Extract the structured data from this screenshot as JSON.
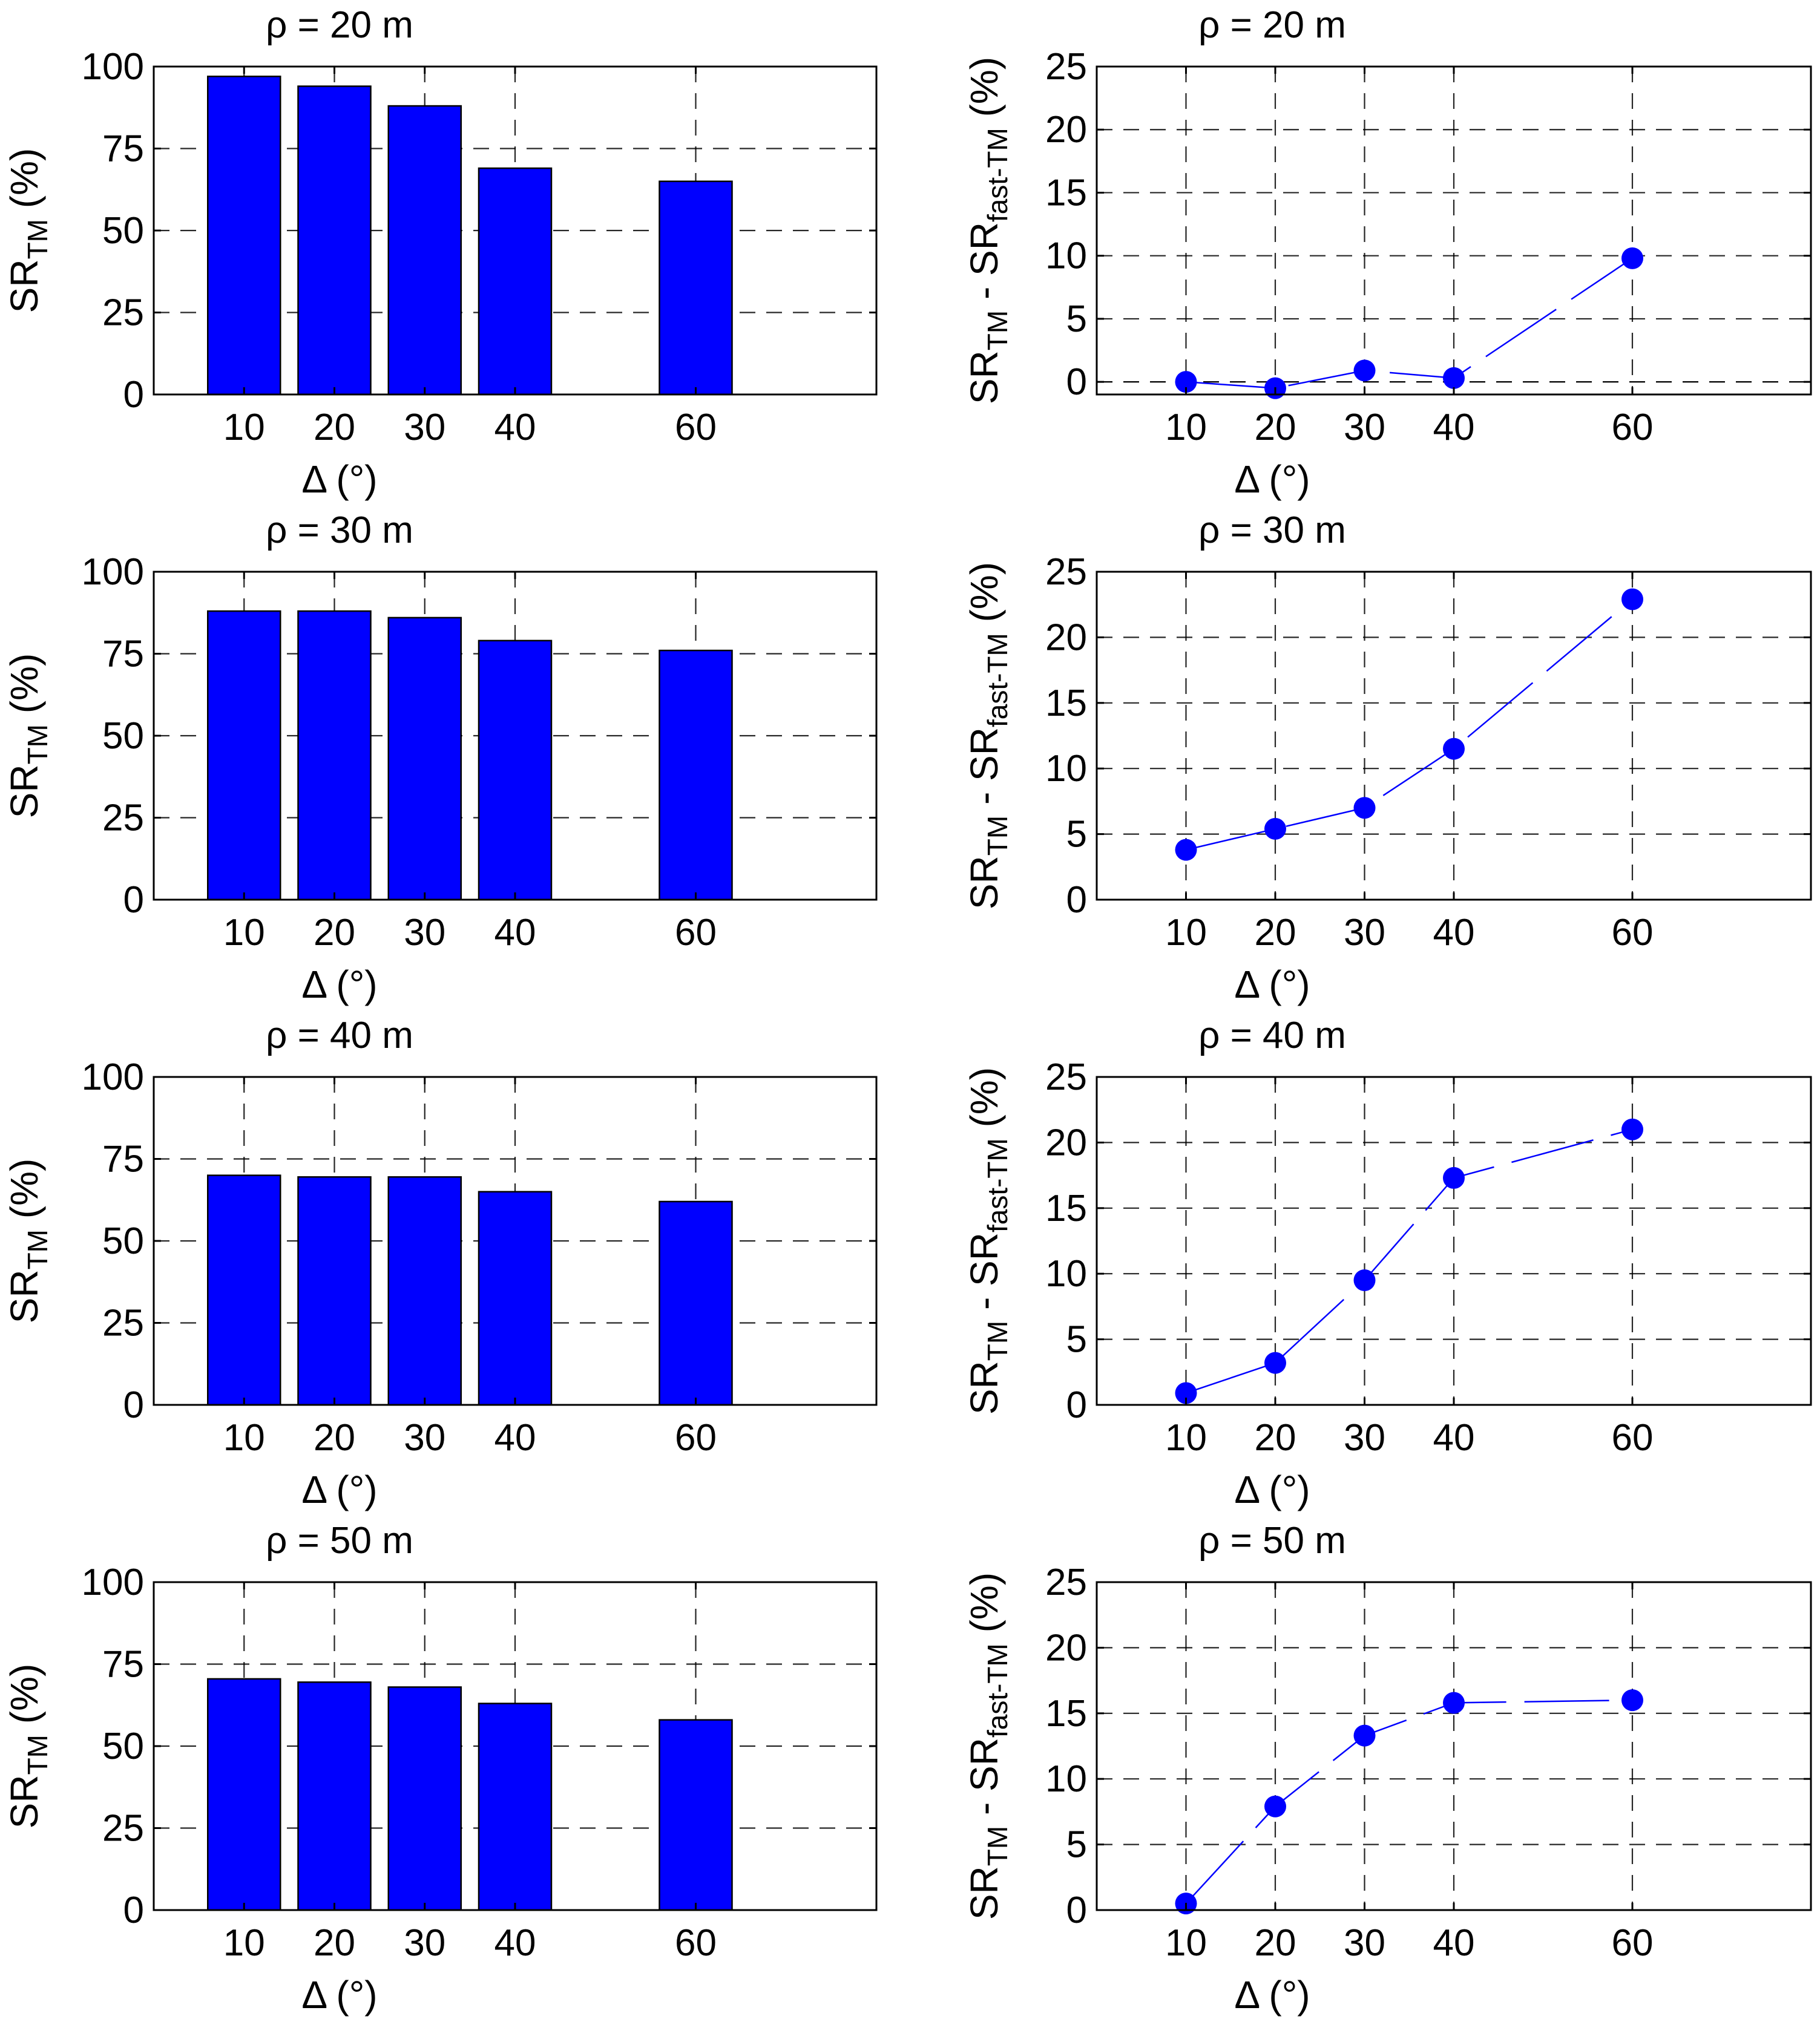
{
  "colors": {
    "bar": "#0000ff",
    "marker": "#0000ff",
    "line": "#0000ff"
  },
  "labels": {
    "x": "Δ (°)",
    "y_left_main": "SR",
    "y_left_sub": "TM",
    "y_left_unit": "(%)",
    "y_right_a": "SR",
    "y_right_sub1": "TM",
    "y_right_mid": " - SR",
    "y_right_sub2": "fast-TM",
    "y_right_unit": "(%)"
  },
  "chart_data": [
    {
      "type": "bar",
      "title": "ρ = 20 m",
      "categories": [
        "10",
        "20",
        "30",
        "40",
        "60"
      ],
      "x": [
        10,
        20,
        30,
        40,
        60
      ],
      "values": [
        97,
        94,
        88,
        69,
        65
      ],
      "xlabel": "Δ (°)",
      "ylabel": "SR_TM (%)",
      "xlim": [
        0,
        80
      ],
      "ylim": [
        0,
        100
      ],
      "yticks": [
        0,
        25,
        50,
        75,
        100
      ],
      "grid": true
    },
    {
      "type": "line",
      "title": "ρ = 20 m",
      "x": [
        10,
        20,
        30,
        40,
        60
      ],
      "values": [
        0,
        -0.5,
        0.9,
        0.3,
        9.8
      ],
      "xlabel": "Δ (°)",
      "ylabel": "SR_TM - SR_fast-TM (%)",
      "xlim": [
        0,
        80
      ],
      "ylim": [
        -1,
        25
      ],
      "yticks": [
        0,
        5,
        10,
        15,
        20,
        25
      ],
      "grid": true
    },
    {
      "type": "bar",
      "title": "ρ = 30 m",
      "categories": [
        "10",
        "20",
        "30",
        "40",
        "60"
      ],
      "x": [
        10,
        20,
        30,
        40,
        60
      ],
      "values": [
        88,
        88,
        86,
        79,
        76
      ],
      "xlabel": "Δ (°)",
      "ylabel": "SR_TM (%)",
      "xlim": [
        0,
        80
      ],
      "ylim": [
        0,
        100
      ],
      "yticks": [
        0,
        25,
        50,
        75,
        100
      ],
      "grid": true
    },
    {
      "type": "line",
      "title": "ρ = 30 m",
      "x": [
        10,
        20,
        30,
        40,
        60
      ],
      "values": [
        3.8,
        5.4,
        7,
        11.5,
        22.9
      ],
      "xlabel": "Δ (°)",
      "ylabel": "SR_TM - SR_fast-TM (%)",
      "xlim": [
        0,
        80
      ],
      "ylim": [
        0,
        25
      ],
      "yticks": [
        0,
        5,
        10,
        15,
        20,
        25
      ],
      "grid": true
    },
    {
      "type": "bar",
      "title": "ρ = 40 m",
      "categories": [
        "10",
        "20",
        "30",
        "40",
        "60"
      ],
      "x": [
        10,
        20,
        30,
        40,
        60
      ],
      "values": [
        70,
        69.5,
        69.5,
        65,
        62
      ],
      "xlabel": "Δ (°)",
      "ylabel": "SR_TM (%)",
      "xlim": [
        0,
        80
      ],
      "ylim": [
        0,
        100
      ],
      "yticks": [
        0,
        25,
        50,
        75,
        100
      ],
      "grid": true
    },
    {
      "type": "line",
      "title": "ρ = 40 m",
      "x": [
        10,
        20,
        30,
        40,
        60
      ],
      "values": [
        0.9,
        3.2,
        9.5,
        17.3,
        21
      ],
      "xlabel": "Δ (°)",
      "ylabel": "SR_TM - SR_fast-TM (%)",
      "xlim": [
        0,
        80
      ],
      "ylim": [
        0,
        25
      ],
      "yticks": [
        0,
        5,
        10,
        15,
        20,
        25
      ],
      "grid": true
    },
    {
      "type": "bar",
      "title": "ρ = 50 m",
      "categories": [
        "10",
        "20",
        "30",
        "40",
        "60"
      ],
      "x": [
        10,
        20,
        30,
        40,
        60
      ],
      "values": [
        70.5,
        69.5,
        68,
        63,
        58
      ],
      "xlabel": "Δ (°)",
      "ylabel": "SR_TM (%)",
      "xlim": [
        0,
        80
      ],
      "ylim": [
        0,
        100
      ],
      "yticks": [
        0,
        25,
        50,
        75,
        100
      ],
      "grid": true
    },
    {
      "type": "line",
      "title": "ρ = 50 m",
      "x": [
        10,
        20,
        30,
        40,
        60
      ],
      "values": [
        0.5,
        7.9,
        13.3,
        15.8,
        16
      ],
      "xlabel": "Δ (°)",
      "ylabel": "SR_TM - SR_fast-TM (%)",
      "xlim": [
        0,
        80
      ],
      "ylim": [
        0,
        25
      ],
      "yticks": [
        0,
        5,
        10,
        15,
        20,
        25
      ],
      "grid": true
    }
  ]
}
